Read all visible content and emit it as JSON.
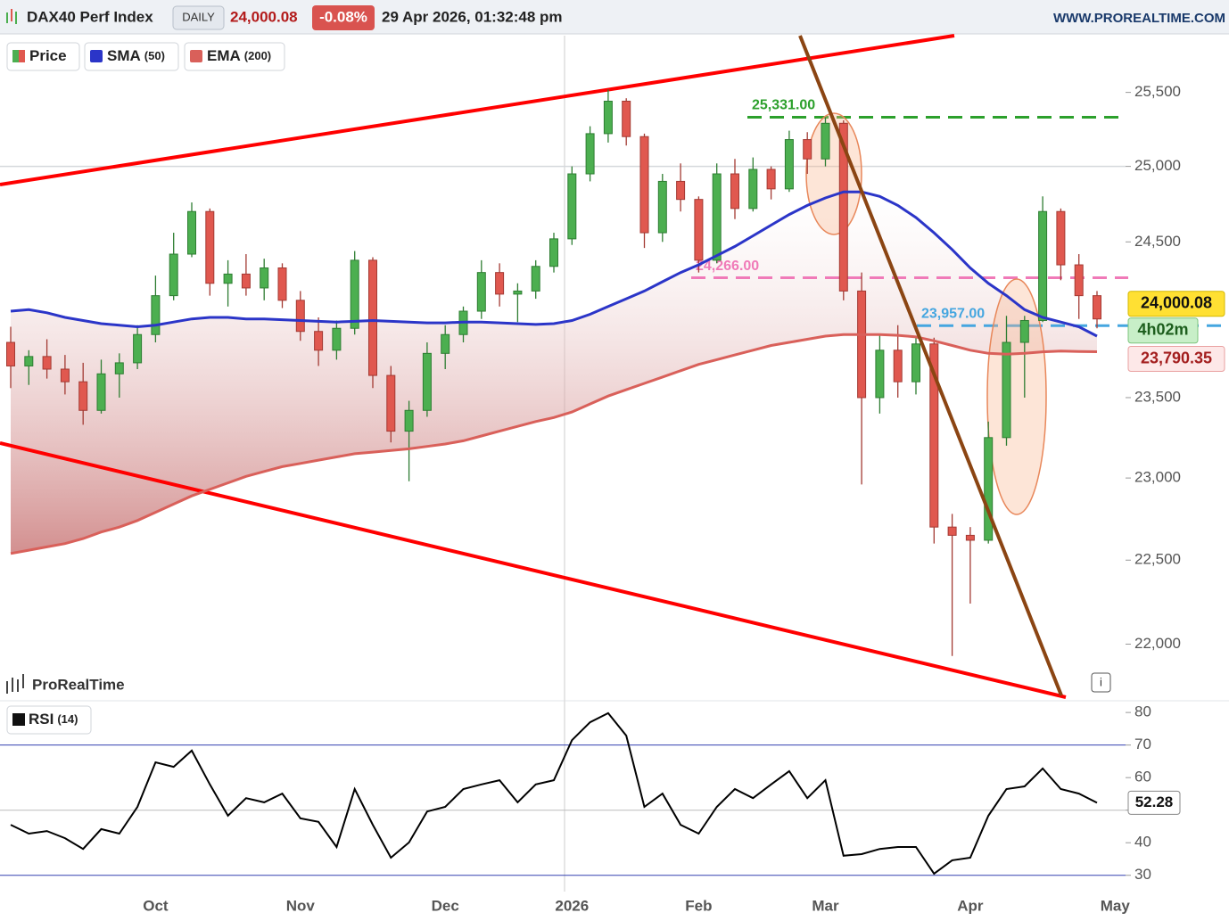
{
  "chart_data": [
    {
      "type": "candlestick",
      "title": "DAX40 Perf Index",
      "timeframe": "DAILY",
      "change_label": "-0.08%",
      "datetime": "29 Apr 2026, 01:32:48 pm",
      "source": "WWW.PROREALTIME.COM",
      "watermark": "ProRealTime",
      "countdown": "4h02m",
      "log_scale": true,
      "categories": [
        null,
        null,
        null,
        null,
        null,
        null,
        null,
        null,
        "Oct",
        null,
        null,
        null,
        null,
        null,
        null,
        null,
        "Nov",
        null,
        null,
        null,
        null,
        null,
        null,
        null,
        "Dec",
        null,
        null,
        null,
        null,
        null,
        null,
        "2026",
        null,
        null,
        null,
        null,
        null,
        null,
        "Feb",
        null,
        null,
        null,
        null,
        null,
        null,
        "Mar",
        null,
        null,
        null,
        null,
        null,
        null,
        null,
        "Apr",
        null,
        null,
        null,
        null,
        null,
        null,
        null,
        "May"
      ],
      "series": [
        {
          "name": "Price",
          "color_up": "#4caf50",
          "color_down": "#e0584f",
          "values": [
            [
              23850,
              23950,
              23560,
              23700
            ],
            [
              23700,
              23800,
              23580,
              23760
            ],
            [
              23760,
              23870,
              23620,
              23680
            ],
            [
              23680,
              23770,
              23520,
              23600
            ],
            [
              23600,
              23720,
              23330,
              23420
            ],
            [
              23420,
              23740,
              23400,
              23650
            ],
            [
              23650,
              23780,
              23500,
              23720
            ],
            [
              23720,
              23960,
              23680,
              23900
            ],
            [
              23900,
              24280,
              23850,
              24150
            ],
            [
              24150,
              24560,
              24120,
              24420
            ],
            [
              24420,
              24760,
              24400,
              24700
            ],
            [
              24700,
              24720,
              24150,
              24230
            ],
            [
              24230,
              24380,
              24080,
              24290
            ],
            [
              24290,
              24420,
              24150,
              24200
            ],
            [
              24200,
              24390,
              24120,
              24330
            ],
            [
              24330,
              24360,
              24070,
              24120
            ],
            [
              24120,
              24180,
              23860,
              23920
            ],
            [
              23920,
              24010,
              23700,
              23800
            ],
            [
              23800,
              23990,
              23740,
              23940
            ],
            [
              23940,
              24440,
              23900,
              24380
            ],
            [
              24380,
              24400,
              23560,
              23640
            ],
            [
              23640,
              23700,
              23220,
              23290
            ],
            [
              23290,
              23480,
              22980,
              23420
            ],
            [
              23420,
              23850,
              23380,
              23780
            ],
            [
              23780,
              23960,
              23680,
              23900
            ],
            [
              23900,
              24080,
              23850,
              24050
            ],
            [
              24050,
              24380,
              24000,
              24300
            ],
            [
              24300,
              24360,
              24080,
              24160
            ],
            [
              24160,
              24230,
              23980,
              24180
            ],
            [
              24180,
              24380,
              24130,
              24340
            ],
            [
              24340,
              24560,
              24300,
              24520
            ],
            [
              24520,
              25000,
              24480,
              24950
            ],
            [
              24950,
              25270,
              24900,
              25220
            ],
            [
              25220,
              25520,
              25160,
              25440
            ],
            [
              25440,
              25460,
              25140,
              25200
            ],
            [
              25200,
              25220,
              24460,
              24560
            ],
            [
              24560,
              24950,
              24500,
              24900
            ],
            [
              24900,
              25020,
              24700,
              24780
            ],
            [
              24780,
              24800,
              24300,
              24380
            ],
            [
              24380,
              25020,
              24360,
              24950
            ],
            [
              24950,
              25050,
              24650,
              24720
            ],
            [
              24720,
              25060,
              24700,
              24980
            ],
            [
              24980,
              25000,
              24780,
              24850
            ],
            [
              24850,
              25240,
              24830,
              25180
            ],
            [
              25180,
              25230,
              24950,
              25050
            ],
            [
              25050,
              25331,
              25000,
              25290
            ],
            [
              25290,
              25310,
              24120,
              24180
            ],
            [
              24180,
              24300,
              22960,
              23500
            ],
            [
              23500,
              23900,
              23400,
              23800
            ],
            [
              23800,
              23960,
              23500,
              23600
            ],
            [
              23600,
              23880,
              23520,
              23840
            ],
            [
              23840,
              23880,
              22600,
              22700
            ],
            [
              22700,
              22780,
              21930,
              22650
            ],
            [
              22650,
              22700,
              22240,
              22620
            ],
            [
              22620,
              23350,
              22600,
              23250
            ],
            [
              23250,
              24020,
              23200,
              23850
            ],
            [
              23850,
              24020,
              23500,
              23990
            ],
            [
              23990,
              24800,
              23980,
              24700
            ],
            [
              24700,
              24720,
              24250,
              24350
            ],
            [
              24350,
              24420,
              24000,
              24150
            ],
            [
              24150,
              24180,
              23940,
              24000.08
            ],
            null
          ]
        },
        {
          "name": "SMA",
          "params": "(50)",
          "color": "#2b35c8",
          "values": [
            24050,
            24060,
            24040,
            24010,
            23990,
            23970,
            23960,
            23950,
            23960,
            23980,
            24000,
            24010,
            24010,
            24000,
            24000,
            23995,
            23990,
            23985,
            23980,
            23985,
            23990,
            23985,
            23980,
            23975,
            23975,
            23980,
            23980,
            23975,
            23970,
            23965,
            23970,
            23990,
            24030,
            24080,
            24130,
            24180,
            24240,
            24300,
            24350,
            24410,
            24470,
            24540,
            24610,
            24680,
            24740,
            24790,
            24830,
            24830,
            24800,
            24740,
            24660,
            24560,
            24450,
            24330,
            24230,
            24150,
            24060,
            24010,
            23980,
            23950,
            23890,
            null
          ]
        },
        {
          "name": "EMA",
          "params": "(200)",
          "color": "#d9605a",
          "values": [
            22540,
            22560,
            22580,
            22600,
            22630,
            22670,
            22700,
            22740,
            22790,
            22840,
            22890,
            22930,
            22970,
            23010,
            23040,
            23070,
            23090,
            23110,
            23130,
            23150,
            23160,
            23170,
            23180,
            23195,
            23210,
            23230,
            23260,
            23290,
            23320,
            23350,
            23375,
            23410,
            23460,
            23510,
            23550,
            23590,
            23630,
            23670,
            23710,
            23740,
            23770,
            23800,
            23830,
            23850,
            23870,
            23890,
            23900,
            23900,
            23900,
            23895,
            23885,
            23860,
            23830,
            23800,
            23780,
            23775,
            23780,
            23790,
            23795,
            23792,
            23790.35,
            null
          ]
        }
      ],
      "ylim": [
        21700,
        25890
      ],
      "yticks": [
        {
          "value": 22000,
          "label": "22,000"
        },
        {
          "value": 22500,
          "label": "22,500"
        },
        {
          "value": 23000,
          "label": "23,000"
        },
        {
          "value": 23500,
          "label": "23,500"
        },
        {
          "value": 24500,
          "label": "24,500"
        },
        {
          "value": 25000,
          "label": "25,000"
        },
        {
          "value": 25500,
          "label": "25,500"
        }
      ],
      "levels": [
        {
          "value": 25331,
          "label": "25,331.00",
          "color": "#2ca02c",
          "dash": true
        },
        {
          "value": 24266,
          "label": "24,266.00",
          "color": "#f07ab8",
          "dash": true
        },
        {
          "value": 23957,
          "label": "23,957.00",
          "color": "#45a6e0",
          "dash": true
        },
        {
          "value": 25000,
          "color": "#d5d8dc",
          "dash": false
        }
      ],
      "tags": [
        {
          "value": 24000.08,
          "label": "24,000.08",
          "color": "#ffe033"
        },
        {
          "value": 23790.35,
          "label": "23,790.35",
          "color": "#fde8e8"
        }
      ]
    },
    {
      "type": "line",
      "title": "RSI",
      "params": "(14)",
      "color": "#000000",
      "values": [
        45.5,
        42.8,
        43.6,
        41.4,
        38.1,
        44.2,
        42.8,
        51,
        64.7,
        63.3,
        68.3,
        57.9,
        48.3,
        53.7,
        52.4,
        55.1,
        47.5,
        46.4,
        38.7,
        56.5,
        45.5,
        35.4,
        40.1,
        49.6,
        51,
        56.5,
        57.9,
        59.2,
        52.4,
        57.9,
        59.2,
        71.5,
        77,
        79.8,
        72.9,
        51,
        55.1,
        45.5,
        42.8,
        51,
        56.5,
        53.7,
        57.9,
        62,
        53.7,
        59.2,
        36,
        36.5,
        38.1,
        38.7,
        38.7,
        30.5,
        34.6,
        35.4,
        48.3,
        56.5,
        57.3,
        62.8,
        56.5,
        55.1,
        52.28,
        null
      ],
      "ylim": [
        25,
        82.5
      ],
      "yticks": [
        30,
        40,
        50,
        60,
        70,
        80
      ],
      "levels": [
        {
          "value": 70,
          "color": "#3340b0"
        },
        {
          "value": 50,
          "color": "#bbbbbb"
        },
        {
          "value": 30,
          "color": "#3340b0"
        }
      ],
      "tag": {
        "value": 52.28,
        "label": "52.28"
      }
    }
  ]
}
